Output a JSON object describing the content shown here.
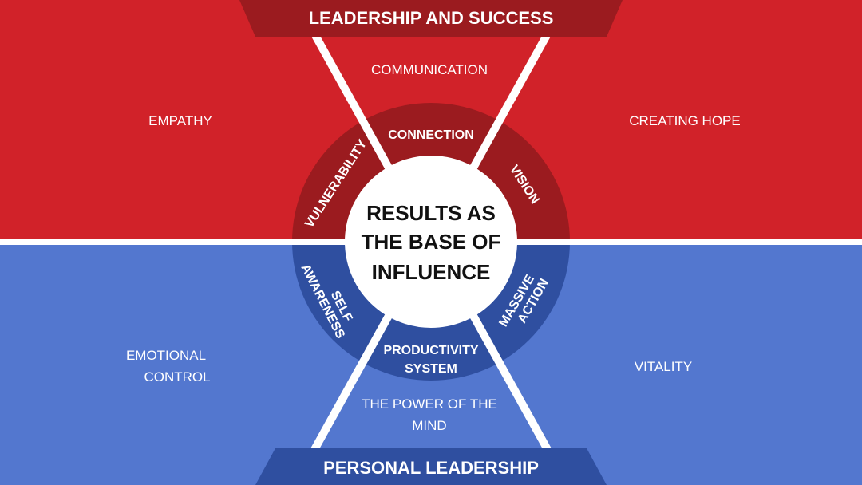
{
  "colors": {
    "red": "#d12229",
    "dark_red": "#9b1b1f",
    "blue": "#5377cf",
    "dark_blue": "#2f4fa0",
    "divider": "#ffffff",
    "center_fill": "#ffffff"
  },
  "top_banner": {
    "text": "LEADERSHIP AND SUCCESS"
  },
  "bottom_banner": {
    "text": "PERSONAL LEADERSHIP"
  },
  "center": {
    "line1": "RESULTS AS",
    "line2": "THE BASE OF",
    "line3": "INFLUENCE"
  },
  "ring": {
    "connection": "CONNECTION",
    "vulnerability": "VULNERABILITY",
    "vision": "VISION",
    "self_awareness": {
      "line1": "SELF",
      "line2": "AWARENESS"
    },
    "massive_action": {
      "line1": "MASSIVE",
      "line2": "ACTION"
    },
    "productivity_system": {
      "line1": "PRODUCTIVITY",
      "line2": "SYSTEM"
    }
  },
  "outer": {
    "communication": "COMMUNICATION",
    "empathy": "EMPATHY",
    "creating_hope": "CREATING HOPE",
    "emotional_control": {
      "line1": "EMOTIONAL",
      "line2": "CONTROL"
    },
    "vitality": "VITALITY",
    "power_of_mind": {
      "line1": "THE POWER OF THE",
      "line2": "MIND"
    }
  }
}
